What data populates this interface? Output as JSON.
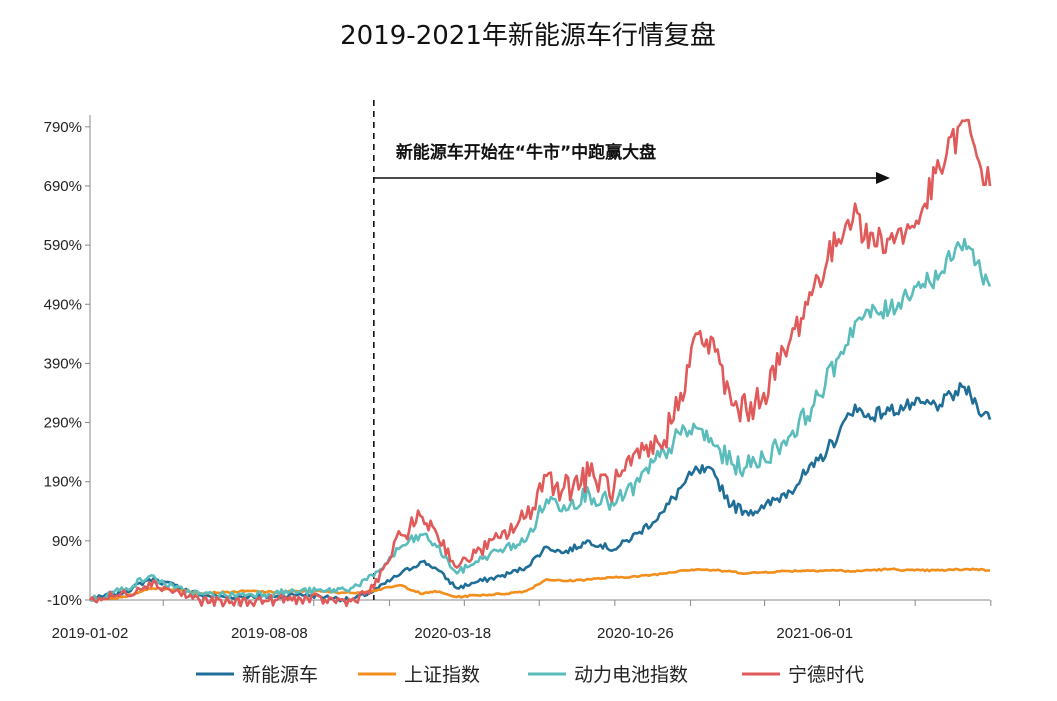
{
  "chart_data": {
    "type": "line",
    "title": "2019-2021年新能源车行情复盘",
    "xlabel": "",
    "ylabel": "",
    "x_ticks": [
      "2019-01-02",
      "2019-08-08",
      "2020-03-18",
      "2020-10-26",
      "2021-06-01"
    ],
    "y_ticks": [
      "-10%",
      "90%",
      "190%",
      "290%",
      "390%",
      "490%",
      "590%",
      "690%",
      "790%"
    ],
    "ylim": [
      -10,
      810
    ],
    "xlim": [
      "2019-01-02",
      "2021-12-31"
    ],
    "grid": false,
    "legend_position": "bottom",
    "annotation": {
      "text": "新能源车开始在“牛市”中跑赢大盘",
      "date": "2019-12-13"
    },
    "x": [
      "2019-01-02",
      "2019-02-15",
      "2019-03-15",
      "2019-04-15",
      "2019-05-15",
      "2019-06-15",
      "2019-07-15",
      "2019-08-15",
      "2019-09-15",
      "2019-10-15",
      "2019-11-15",
      "2019-12-13",
      "2020-01-15",
      "2020-02-10",
      "2020-02-25",
      "2020-03-23",
      "2020-04-15",
      "2020-05-15",
      "2020-06-15",
      "2020-07-10",
      "2020-07-31",
      "2020-08-31",
      "2020-09-30",
      "2020-10-31",
      "2020-11-30",
      "2020-12-20",
      "2021-01-10",
      "2021-01-31",
      "2021-02-20",
      "2021-03-10",
      "2021-03-31",
      "2021-04-30",
      "2021-05-31",
      "2021-06-30",
      "2021-07-20",
      "2021-07-31",
      "2021-08-31",
      "2021-09-30",
      "2021-10-31",
      "2021-11-30",
      "2021-12-15",
      "2021-12-31"
    ],
    "series": [
      {
        "name": "新能源车",
        "color": "#1f6e97",
        "values": [
          -10,
          5,
          25,
          15,
          -2,
          -5,
          -3,
          -5,
          0,
          -5,
          -10,
          5,
          35,
          55,
          45,
          10,
          20,
          30,
          45,
          80,
          70,
          90,
          75,
          105,
          140,
          180,
          210,
          200,
          150,
          140,
          145,
          175,
          215,
          270,
          320,
          300,
          310,
          320,
          320,
          350,
          320,
          295
        ]
      },
      {
        "name": "上证指数",
        "color": "#f28e1c",
        "values": [
          -10,
          -5,
          10,
          8,
          2,
          3,
          5,
          3,
          5,
          4,
          2,
          6,
          15,
          0,
          5,
          -5,
          -2,
          0,
          5,
          25,
          22,
          25,
          28,
          30,
          35,
          40,
          42,
          40,
          38,
          35,
          37,
          39,
          40,
          40,
          38,
          40,
          42,
          40,
          40,
          42,
          42,
          40
        ]
      },
      {
        "name": "动力电池指数",
        "color": "#5bbcbc",
        "values": [
          -10,
          10,
          30,
          10,
          0,
          -2,
          0,
          2,
          5,
          5,
          10,
          30,
          80,
          100,
          85,
          35,
          55,
          75,
          90,
          160,
          150,
          170,
          150,
          190,
          240,
          270,
          280,
          250,
          220,
          215,
          230,
          265,
          320,
          400,
          460,
          470,
          480,
          520,
          540,
          600,
          560,
          520
        ]
      },
      {
        "name": "宁德时代",
        "color": "#e05a5a",
        "values": [
          -10,
          0,
          20,
          5,
          -10,
          -15,
          -12,
          -10,
          -8,
          -10,
          -12,
          10,
          100,
          130,
          110,
          45,
          70,
          95,
          130,
          200,
          180,
          200,
          180,
          230,
          260,
          340,
          440,
          410,
          320,
          310,
          340,
          420,
          520,
          600,
          660,
          600,
          600,
          620,
          720,
          800,
          740,
          690
        ]
      }
    ]
  }
}
